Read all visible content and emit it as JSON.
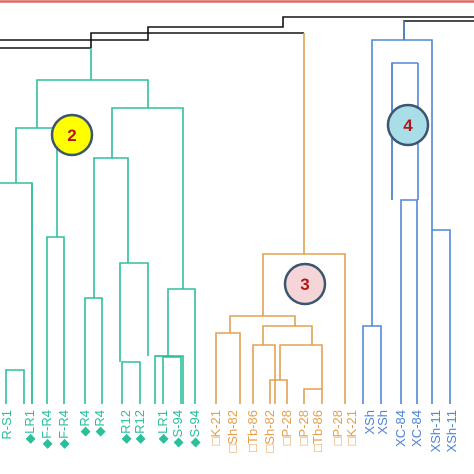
{
  "colors": {
    "top_rule": "#e06666",
    "root_links": "#111111",
    "cluster_2": "#2bbf9c",
    "cluster_3": "#e3a04f",
    "cluster_4": "#4f86d6",
    "badge_text": "#b01818",
    "badge_stroke": "#3b5670"
  },
  "clusters": [
    {
      "id": "2",
      "label": "2",
      "fill": "#ffff00"
    },
    {
      "id": "3",
      "label": "3",
      "fill": "#f5d5d8"
    },
    {
      "id": "4",
      "label": "4",
      "fill": "#a9dde8"
    }
  ],
  "leaves": [
    {
      "label": "R-S1",
      "marker": "",
      "cluster": "2"
    },
    {
      "label": "LR1",
      "marker": "◆",
      "cluster": "2"
    },
    {
      "label": "F-R4",
      "marker": "◆",
      "cluster": "2"
    },
    {
      "label": "F-R4",
      "marker": "◆",
      "cluster": "2"
    },
    {
      "label": "R4",
      "marker": "◆",
      "cluster": "2"
    },
    {
      "label": "R4",
      "marker": "◆",
      "cluster": "2"
    },
    {
      "label": "R12",
      "marker": "◆",
      "cluster": "2"
    },
    {
      "label": "R12",
      "marker": "◆",
      "cluster": "2"
    },
    {
      "label": "LR1",
      "marker": "◆",
      "cluster": "2"
    },
    {
      "label": "S-94",
      "marker": "◆",
      "cluster": "2"
    },
    {
      "label": "S-94",
      "marker": "◆",
      "cluster": "2"
    },
    {
      "label": "K-21",
      "marker": "□",
      "cluster": "3"
    },
    {
      "label": "Sh-82",
      "marker": "□",
      "cluster": "3"
    },
    {
      "label": "Tb-86",
      "marker": "□",
      "cluster": "3"
    },
    {
      "label": "Sh-82",
      "marker": "□",
      "cluster": "3"
    },
    {
      "label": "P-28",
      "marker": "□",
      "cluster": "3"
    },
    {
      "label": "P-28",
      "marker": "□",
      "cluster": "3"
    },
    {
      "label": "Tb-86",
      "marker": "□",
      "cluster": "3"
    },
    {
      "label": "P-28",
      "marker": "□",
      "cluster": "3"
    },
    {
      "label": "K-21",
      "marker": "□",
      "cluster": "3"
    },
    {
      "label": "Sh",
      "marker": "X",
      "cluster": "4"
    },
    {
      "label": "Sh",
      "marker": "X",
      "cluster": "4"
    },
    {
      "label": "C-84",
      "marker": "X",
      "cluster": "4"
    },
    {
      "label": "C-84",
      "marker": "X",
      "cluster": "4"
    },
    {
      "label": "Sh-11",
      "marker": "X",
      "cluster": "4"
    },
    {
      "label": "Sh-11",
      "marker": "X",
      "cluster": "4"
    }
  ]
}
